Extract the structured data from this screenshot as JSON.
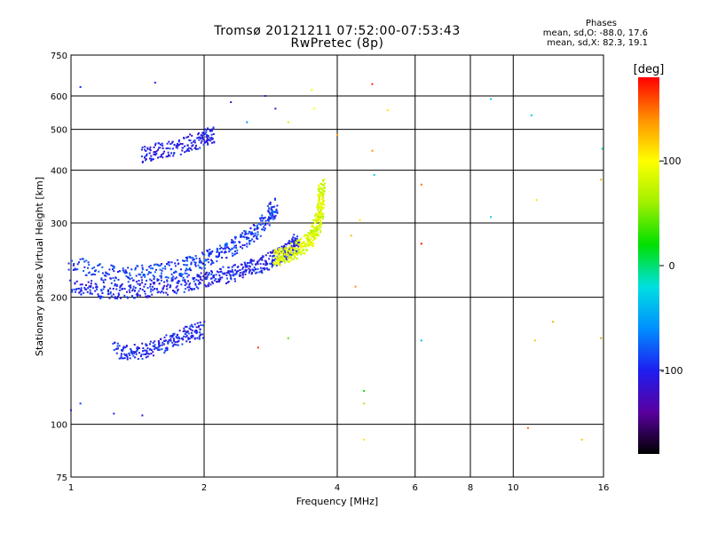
{
  "header": {
    "title": "Tromsø 20121211 07:52:00-07:53:43",
    "subtitle": "RwPretec (8p)"
  },
  "phase_stats": {
    "heading": "Phases",
    "line_o": "mean, sd,O: -88.0, 17.6",
    "line_x": "mean, sd,X:  82.3, 19.1"
  },
  "colorbar": {
    "label": "[deg]",
    "ticks": [
      {
        "value": 100,
        "label": "100"
      },
      {
        "value": 0,
        "label": "0"
      },
      {
        "value": -100,
        "label": "-100"
      }
    ],
    "range": [
      -180,
      180
    ],
    "stops": [
      "#000000",
      "#5a00a0",
      "#1e1ef0",
      "#0090ff",
      "#00e0e0",
      "#00e000",
      "#a0f000",
      "#ffff00",
      "#ff9000",
      "#ff0000"
    ]
  },
  "chart_data": {
    "type": "scatter",
    "xlabel": "Frequency [MHz]",
    "ylabel": "Stationary phase Virtual Height [km]",
    "xscale": "log",
    "yscale": "log",
    "xlim": [
      1,
      16
    ],
    "ylim": [
      75,
      750
    ],
    "xticks": [
      1,
      2,
      4,
      6,
      8,
      10,
      16
    ],
    "yticks": [
      75,
      100,
      200,
      300,
      400,
      500,
      600,
      750
    ],
    "grid": true,
    "traces": [
      {
        "name": "",
        "x": [
          1.0,
          1.15,
          1.3,
          1.5,
          1.7,
          1.9,
          2.1,
          2.3,
          2.5,
          2.7,
          2.9,
          3.05,
          3.15,
          3.25
        ],
        "y": [
          212,
          208,
          207,
          209,
          213,
          218,
          223,
          227,
          233,
          240,
          248,
          255,
          262,
          270
        ],
        "phase": -100
      },
      {
        "name": "",
        "x": [
          1.0,
          1.2,
          1.4,
          1.6,
          1.8,
          2.0,
          2.2,
          2.4,
          2.6,
          2.8,
          2.9
        ],
        "y": [
          240,
          228,
          227,
          230,
          236,
          245,
          255,
          268,
          285,
          310,
          330
        ],
        "phase": -90
      },
      {
        "name": "",
        "x": [
          2.9,
          3.0,
          3.15,
          3.3,
          3.45,
          3.55,
          3.62,
          3.66,
          3.68,
          3.7
        ],
        "y": [
          248,
          250,
          255,
          262,
          272,
          285,
          300,
          320,
          345,
          370
        ],
        "phase": 85
      },
      {
        "name": "",
        "x": [
          1.45,
          1.6,
          1.8,
          2.0,
          2.1
        ],
        "y": [
          435,
          445,
          460,
          475,
          485
        ],
        "phase": -105
      },
      {
        "name": "",
        "x": [
          1.25,
          1.4,
          1.55,
          1.7,
          1.85,
          2.0
        ],
        "y": [
          150,
          148,
          152,
          158,
          164,
          168
        ],
        "phase": -100
      }
    ],
    "points": [
      {
        "x": 1.05,
        "y": 630,
        "phase": -95
      },
      {
        "x": 1.55,
        "y": 645,
        "phase": -105
      },
      {
        "x": 2.3,
        "y": 580,
        "phase": -110
      },
      {
        "x": 2.5,
        "y": 520,
        "phase": -60
      },
      {
        "x": 2.75,
        "y": 600,
        "phase": -110
      },
      {
        "x": 2.9,
        "y": 560,
        "phase": -100
      },
      {
        "x": 3.1,
        "y": 520,
        "phase": 80
      },
      {
        "x": 3.5,
        "y": 620,
        "phase": 95
      },
      {
        "x": 3.55,
        "y": 560,
        "phase": 100
      },
      {
        "x": 4.0,
        "y": 485,
        "phase": 135
      },
      {
        "x": 4.3,
        "y": 280,
        "phase": 125
      },
      {
        "x": 4.4,
        "y": 212,
        "phase": 140
      },
      {
        "x": 4.5,
        "y": 305,
        "phase": 110
      },
      {
        "x": 4.6,
        "y": 120,
        "phase": 20
      },
      {
        "x": 4.6,
        "y": 112,
        "phase": 60
      },
      {
        "x": 4.6,
        "y": 92,
        "phase": 110
      },
      {
        "x": 4.8,
        "y": 640,
        "phase": 170
      },
      {
        "x": 4.8,
        "y": 445,
        "phase": 140
      },
      {
        "x": 4.85,
        "y": 390,
        "phase": -30
      },
      {
        "x": 5.2,
        "y": 555,
        "phase": 110
      },
      {
        "x": 6.2,
        "y": 370,
        "phase": 150
      },
      {
        "x": 6.2,
        "y": 268,
        "phase": 175
      },
      {
        "x": 6.2,
        "y": 158,
        "phase": -40
      },
      {
        "x": 8.9,
        "y": 590,
        "phase": -30
      },
      {
        "x": 8.9,
        "y": 310,
        "phase": -30
      },
      {
        "x": 10.8,
        "y": 98,
        "phase": 150
      },
      {
        "x": 11.0,
        "y": 540,
        "phase": -30
      },
      {
        "x": 11.3,
        "y": 340,
        "phase": 110
      },
      {
        "x": 11.2,
        "y": 158,
        "phase": 120
      },
      {
        "x": 12.3,
        "y": 175,
        "phase": 130
      },
      {
        "x": 14.3,
        "y": 92,
        "phase": 120
      },
      {
        "x": 15.9,
        "y": 450,
        "phase": -10
      },
      {
        "x": 15.8,
        "y": 380,
        "phase": 130
      },
      {
        "x": 15.8,
        "y": 160,
        "phase": 140
      },
      {
        "x": 1.0,
        "y": 108,
        "phase": -110
      },
      {
        "x": 1.05,
        "y": 112,
        "phase": -90
      },
      {
        "x": 1.25,
        "y": 106,
        "phase": -100
      },
      {
        "x": 1.45,
        "y": 105,
        "phase": -120
      },
      {
        "x": 2.65,
        "y": 152,
        "phase": 165
      },
      {
        "x": 3.1,
        "y": 160,
        "phase": 40
      }
    ]
  }
}
